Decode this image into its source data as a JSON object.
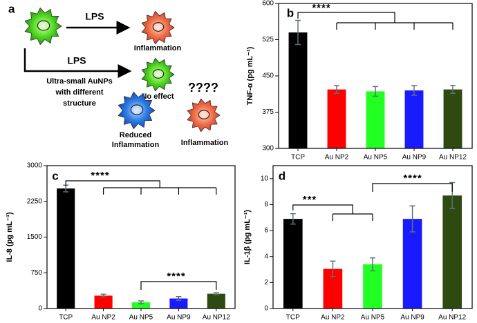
{
  "diagram": {
    "panel": "a",
    "arrow1_label": "LPS",
    "result1": "Inflammation",
    "arrow2_label": "LPS",
    "treatment": [
      "Ultra-small AuNPs",
      "with different",
      "structure"
    ],
    "result2": "No effect",
    "question": "????",
    "result3": [
      "Reduced",
      "Inflammation"
    ],
    "result4": "Inflammation"
  },
  "chart_data": [
    {
      "type": "bar",
      "panel": "b",
      "y_label": "TNF-α (pg mL⁻¹)",
      "categories": [
        "TCP",
        "Au NP2",
        "Au NP5",
        "Au NP9",
        "Au NP12"
      ],
      "values": [
        540,
        422,
        418,
        420,
        422
      ],
      "errors": [
        25,
        8,
        10,
        10,
        8
      ],
      "colors": [
        "#000000",
        "#ff0000",
        "#22ff22",
        "#1a1aff",
        "#2f4a10"
      ],
      "ylim": [
        300,
        600
      ],
      "yticks": [
        300,
        375,
        450,
        525,
        600
      ],
      "annotations": [
        "****"
      ]
    },
    {
      "type": "bar",
      "panel": "c",
      "y_label": "IL-8 (pg mL⁻¹)",
      "categories": [
        "TCP",
        "Au NP2",
        "Au NP5",
        "Au NP9",
        "Au NP12"
      ],
      "values": [
        2520,
        270,
        130,
        210,
        310
      ],
      "errors": [
        70,
        30,
        30,
        40,
        20
      ],
      "colors": [
        "#000000",
        "#ff0000",
        "#22ff22",
        "#1a1aff",
        "#2f4a10"
      ],
      "ylim": [
        0,
        3000
      ],
      "yticks": [
        0,
        750,
        1500,
        2250,
        3000
      ],
      "annotations": [
        "****",
        "****"
      ]
    },
    {
      "type": "bar",
      "panel": "d",
      "y_label": "IL-1β (pg mL⁻¹)",
      "categories": [
        "TCP",
        "Au NP2",
        "Au NP5",
        "Au NP9",
        "Au NP12"
      ],
      "values": [
        6.9,
        3.05,
        3.4,
        6.9,
        8.7
      ],
      "errors": [
        0.4,
        0.6,
        0.5,
        1.0,
        1.0
      ],
      "colors": [
        "#000000",
        "#ff0000",
        "#22ff22",
        "#1a1aff",
        "#2f4a10"
      ],
      "ylim": [
        0,
        11
      ],
      "yticks": [
        0,
        2,
        4,
        6,
        8,
        10
      ],
      "annotations": [
        "***",
        "****"
      ]
    }
  ]
}
